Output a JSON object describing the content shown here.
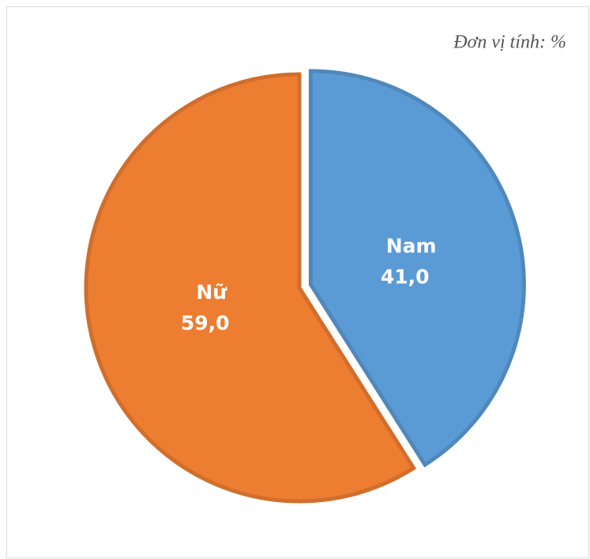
{
  "chart_data": {
    "type": "pie",
    "subtitle": "Đơn vị tính: %",
    "categories": [
      "Nam",
      "Nữ"
    ],
    "values": [
      41,
      59
    ],
    "value_labels": [
      "41,0",
      "59,0"
    ],
    "colors": [
      "#5b9bd5",
      "#ed7d31"
    ],
    "explode": [
      true,
      false
    ]
  }
}
